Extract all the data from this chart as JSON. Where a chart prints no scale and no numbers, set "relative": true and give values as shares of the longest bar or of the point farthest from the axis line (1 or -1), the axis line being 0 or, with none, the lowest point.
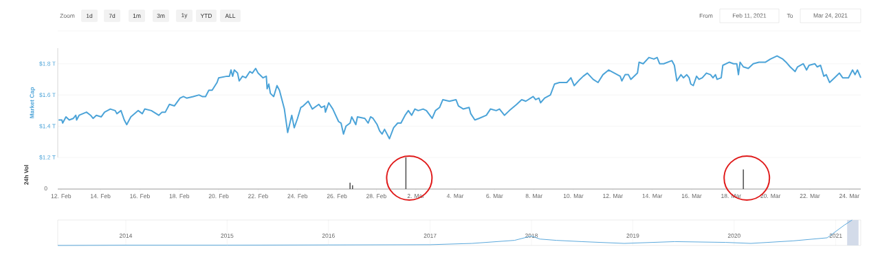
{
  "chart_data": [
    {
      "type": "line",
      "ylabel": "Market Cap",
      "color": "#4ba3d8",
      "grid": "y",
      "tick_labels": "y",
      "annotations": [
        "Zoom",
        "1d",
        "7d",
        "1m",
        "3m",
        "1y",
        "YTD",
        "ALL",
        "From",
        "Feb 11, 2021",
        "To",
        "Mar 24, 2021"
      ],
      "xlim": [
        "2021-02-11T20:00",
        "2021-03-24T14:00"
      ],
      "ylim": [
        1.2,
        1.9
      ],
      "yticks": [
        {
          "value": 1.2,
          "label": "$1.2 T"
        },
        {
          "value": 1.4,
          "label": "$1.4 T"
        },
        {
          "value": 1.6,
          "label": "$1.6 T"
        },
        {
          "value": 1.8,
          "label": "$1.8 T"
        }
      ],
      "x": [
        "2021-02-11T21:00",
        "2021-02-12T01:00",
        "2021-02-12T02:00",
        "2021-02-12T06:00",
        "2021-02-12T10:00",
        "2021-02-12T15:00",
        "2021-02-12T18:00",
        "2021-02-12T19:00",
        "2021-02-12T22:00",
        "2021-02-13T07:00",
        "2021-02-13T12:00",
        "2021-02-13T15:00",
        "2021-02-13T19:00",
        "2021-02-14T01:00",
        "2021-02-14T05:00",
        "2021-02-14T12:00",
        "2021-02-14T18:00",
        "2021-02-14T20:00",
        "2021-02-15T01:00",
        "2021-02-15T05:00",
        "2021-02-15T08:00",
        "2021-02-15T13:00",
        "2021-02-15T22:00",
        "2021-02-16T03:00",
        "2021-02-16T06:00",
        "2021-02-16T14:00",
        "2021-02-16T23:00",
        "2021-02-17T03:00",
        "2021-02-17T07:00",
        "2021-02-17T12:00",
        "2021-02-17T18:00",
        "2021-02-18T01:00",
        "2021-02-18T05:00",
        "2021-02-18T09:00",
        "2021-02-18T17:00",
        "2021-02-19T00:00",
        "2021-02-19T04:00",
        "2021-02-19T08:00",
        "2021-02-19T12:00",
        "2021-02-19T16:00",
        "2021-02-19T22:00",
        "2021-02-20T00:00",
        "2021-02-20T10:00",
        "2021-02-20T13:00",
        "2021-02-20T15:00",
        "2021-02-20T17:00",
        "2021-02-20T19:00",
        "2021-02-20T23:00",
        "2021-02-21T01:00",
        "2021-02-21T05:00",
        "2021-02-21T09:00",
        "2021-02-21T14:00",
        "2021-02-21T17:00",
        "2021-02-21T21:00",
        "2021-02-22T00:00",
        "2021-02-22T06:00",
        "2021-02-22T10:00",
        "2021-02-22T11:00",
        "2021-02-22T13:00",
        "2021-02-22T15:00",
        "2021-02-22T19:00",
        "2021-02-22T23:00",
        "2021-02-23T02:00",
        "2021-02-23T08:00",
        "2021-02-23T12:00",
        "2021-02-23T17:00",
        "2021-02-23T20:00",
        "2021-02-24T00:00",
        "2021-02-24T04:00",
        "2021-02-24T07:00",
        "2021-02-24T13:00",
        "2021-02-24T18:00",
        "2021-02-25T02:00",
        "2021-02-25T05:00",
        "2021-02-25T09:00",
        "2021-02-25T10:00",
        "2021-02-25T14:00",
        "2021-02-25T19:00",
        "2021-02-26T02:00",
        "2021-02-26T05:00",
        "2021-02-26T08:00",
        "2021-02-26T11:00",
        "2021-02-26T16:00",
        "2021-02-26T18:00",
        "2021-02-26T23:00",
        "2021-02-27T01:00",
        "2021-02-27T10:00",
        "2021-02-27T14:00",
        "2021-02-27T17:00",
        "2021-02-27T20:00",
        "2021-02-28T01:00",
        "2021-02-28T04:00",
        "2021-02-28T07:00",
        "2021-02-28T10:00",
        "2021-02-28T16:00",
        "2021-02-28T21:00",
        "2021-03-01T02:00",
        "2021-03-01T06:00",
        "2021-03-01T11:00",
        "2021-03-01T15:00",
        "2021-03-01T19:00",
        "2021-03-01T23:00",
        "2021-03-02T03:00",
        "2021-03-02T09:00",
        "2021-03-02T13:00",
        "2021-03-02T20:00",
        "2021-03-03T00:00",
        "2021-03-03T05:00",
        "2021-03-03T09:00",
        "2021-03-03T17:00",
        "2021-03-04T01:00",
        "2021-03-04T04:00",
        "2021-03-04T10:00",
        "2021-03-04T17:00",
        "2021-03-04T19:00",
        "2021-03-05T00:00",
        "2021-03-05T05:00",
        "2021-03-05T14:00",
        "2021-03-05T19:00",
        "2021-03-06T02:00",
        "2021-03-06T06:00",
        "2021-03-06T12:00",
        "2021-03-06T18:00",
        "2021-03-07T03:00",
        "2021-03-07T09:00",
        "2021-03-07T14:00",
        "2021-03-07T23:00",
        "2021-03-08T02:00",
        "2021-03-08T06:00",
        "2021-03-08T08:00",
        "2021-03-08T13:00",
        "2021-03-08T20:00",
        "2021-03-09T01:00",
        "2021-03-09T07:00",
        "2021-03-09T16:00",
        "2021-03-09T21:00",
        "2021-03-10T01:00",
        "2021-03-10T08:00",
        "2021-03-10T12:00",
        "2021-03-10T17:00",
        "2021-03-11T00:00",
        "2021-03-11T06:00",
        "2021-03-11T12:00",
        "2021-03-11T19:00",
        "2021-03-12T02:00",
        "2021-03-12T09:00",
        "2021-03-12T11:00",
        "2021-03-12T15:00",
        "2021-03-12T19:00",
        "2021-03-12T22:00",
        "2021-03-13T06:00",
        "2021-03-13T08:00",
        "2021-03-13T13:00",
        "2021-03-13T20:00",
        "2021-03-14T02:00",
        "2021-03-14T06:00",
        "2021-03-14T09:00",
        "2021-03-14T14:00",
        "2021-03-15T00:00",
        "2021-03-15T03:00",
        "2021-03-15T06:00",
        "2021-03-15T11:00",
        "2021-03-15T14:00",
        "2021-03-15T18:00",
        "2021-03-15T21:00",
        "2021-03-15T23:00",
        "2021-03-16T02:00",
        "2021-03-16T06:00",
        "2021-03-16T09:00",
        "2021-03-16T13:00",
        "2021-03-16T18:00",
        "2021-03-16T23:00",
        "2021-03-17T02:00",
        "2021-03-17T05:00",
        "2021-03-17T07:00",
        "2021-03-17T12:00",
        "2021-03-17T14:00",
        "2021-03-17T22:00",
        "2021-03-18T03:00",
        "2021-03-18T07:00",
        "2021-03-18T09:00",
        "2021-03-18T11:00",
        "2021-03-18T15:00",
        "2021-03-18T21:00",
        "2021-03-19T03:00",
        "2021-03-19T10:00",
        "2021-03-19T18:00",
        "2021-03-20T00:00",
        "2021-03-20T08:00",
        "2021-03-20T15:00",
        "2021-03-20T19:00",
        "2021-03-21T00:00",
        "2021-03-21T06:00",
        "2021-03-21T09:00",
        "2021-03-21T16:00",
        "2021-03-21T20:00",
        "2021-03-21T23:00",
        "2021-03-22T06:00",
        "2021-03-22T09:00",
        "2021-03-22T13:00",
        "2021-03-22T17:00",
        "2021-03-22T20:00",
        "2021-03-23T00:00",
        "2021-03-23T06:00",
        "2021-03-23T12:00",
        "2021-03-23T16:00",
        "2021-03-23T23:00",
        "2021-03-24T04:00",
        "2021-03-24T07:00",
        "2021-03-24T10:00",
        "2021-03-24T14:00"
      ],
      "values": [
        1.44,
        1.44,
        1.42,
        1.46,
        1.44,
        1.45,
        1.47,
        1.44,
        1.47,
        1.49,
        1.47,
        1.45,
        1.47,
        1.46,
        1.49,
        1.51,
        1.5,
        1.48,
        1.5,
        1.44,
        1.41,
        1.46,
        1.5,
        1.48,
        1.51,
        1.5,
        1.47,
        1.49,
        1.49,
        1.54,
        1.53,
        1.58,
        1.59,
        1.58,
        1.59,
        1.6,
        1.59,
        1.59,
        1.63,
        1.63,
        1.68,
        1.71,
        1.72,
        1.72,
        1.76,
        1.72,
        1.76,
        1.74,
        1.69,
        1.72,
        1.71,
        1.75,
        1.74,
        1.77,
        1.74,
        1.71,
        1.72,
        1.64,
        1.67,
        1.61,
        1.59,
        1.66,
        1.63,
        1.51,
        1.36,
        1.47,
        1.39,
        1.45,
        1.52,
        1.53,
        1.56,
        1.51,
        1.54,
        1.52,
        1.53,
        1.49,
        1.55,
        1.51,
        1.43,
        1.42,
        1.35,
        1.4,
        1.42,
        1.46,
        1.41,
        1.46,
        1.45,
        1.42,
        1.46,
        1.45,
        1.41,
        1.37,
        1.35,
        1.38,
        1.32,
        1.39,
        1.42,
        1.42,
        1.47,
        1.5,
        1.47,
        1.51,
        1.5,
        1.51,
        1.5,
        1.45,
        1.5,
        1.52,
        1.57,
        1.56,
        1.57,
        1.53,
        1.51,
        1.52,
        1.48,
        1.44,
        1.45,
        1.47,
        1.51,
        1.5,
        1.51,
        1.47,
        1.5,
        1.54,
        1.57,
        1.56,
        1.59,
        1.57,
        1.58,
        1.55,
        1.58,
        1.6,
        1.67,
        1.68,
        1.68,
        1.71,
        1.66,
        1.7,
        1.72,
        1.74,
        1.7,
        1.68,
        1.73,
        1.76,
        1.74,
        1.72,
        1.69,
        1.73,
        1.73,
        1.7,
        1.74,
        1.81,
        1.8,
        1.84,
        1.83,
        1.84,
        1.8,
        1.8,
        1.82,
        1.79,
        1.69,
        1.73,
        1.71,
        1.73,
        1.71,
        1.67,
        1.66,
        1.72,
        1.7,
        1.71,
        1.74,
        1.73,
        1.71,
        1.73,
        1.7,
        1.71,
        1.79,
        1.81,
        1.8,
        1.8,
        1.73,
        1.81,
        1.78,
        1.77,
        1.8,
        1.81,
        1.81,
        1.83,
        1.85,
        1.83,
        1.81,
        1.78,
        1.75,
        1.78,
        1.8,
        1.76,
        1.79,
        1.8,
        1.78,
        1.79,
        1.72,
        1.73,
        1.68,
        1.71,
        1.74,
        1.71,
        1.71,
        1.76,
        1.73,
        1.76,
        1.71
      ]
    },
    {
      "type": "bar",
      "relative": true,
      "ylabel": "24h Vol",
      "color": "#555555",
      "annotations": [
        "0"
      ],
      "xlim": [
        "2021-02-11T20:00",
        "2021-03-24T14:00"
      ],
      "xticks": [
        {
          "value": "2021-02-12",
          "label": "12. Feb"
        },
        {
          "value": "2021-02-14",
          "label": "14. Feb"
        },
        {
          "value": "2021-02-16",
          "label": "16. Feb"
        },
        {
          "value": "2021-02-18",
          "label": "18. Feb"
        },
        {
          "value": "2021-02-20",
          "label": "20. Feb"
        },
        {
          "value": "2021-02-22",
          "label": "22. Feb"
        },
        {
          "value": "2021-02-24",
          "label": "24. Feb"
        },
        {
          "value": "2021-02-26",
          "label": "26. Feb"
        },
        {
          "value": "2021-02-28",
          "label": "28. Feb"
        },
        {
          "value": "2021-03-02",
          "label": "2. Mar"
        },
        {
          "value": "2021-03-04",
          "label": "4. Mar"
        },
        {
          "value": "2021-03-06",
          "label": "6. Mar"
        },
        {
          "value": "2021-03-08",
          "label": "8. Mar"
        },
        {
          "value": "2021-03-10",
          "label": "10. Mar"
        },
        {
          "value": "2021-03-12",
          "label": "12. Mar"
        },
        {
          "value": "2021-03-14",
          "label": "14. Mar"
        },
        {
          "value": "2021-03-16",
          "label": "16. Mar"
        },
        {
          "value": "2021-03-18",
          "label": "18. Mar"
        },
        {
          "value": "2021-03-20",
          "label": "20. Mar"
        },
        {
          "value": "2021-03-22",
          "label": "22. Mar"
        },
        {
          "value": "2021-03-24",
          "label": "24. Mar"
        }
      ],
      "x": [
        "2021-02-26T16:00",
        "2021-02-26T19:00",
        "2021-03-01T12:00",
        "2021-03-18T15:00"
      ],
      "values": [
        0.2,
        0.12,
        1,
        0.62
      ]
    },
    {
      "type": "line",
      "relative": true,
      "color": "#5aa8dc",
      "grid": "x",
      "xlim": [
        "2013-05",
        "2021-04"
      ],
      "xticks": [
        {
          "value": "2014",
          "label": "2014"
        },
        {
          "value": "2015",
          "label": "2015"
        },
        {
          "value": "2016",
          "label": "2016"
        },
        {
          "value": "2017",
          "label": "2017"
        },
        {
          "value": "2018",
          "label": "2018"
        },
        {
          "value": "2019",
          "label": "2019"
        },
        {
          "value": "2020",
          "label": "2020"
        },
        {
          "value": "2021",
          "label": "2021"
        }
      ],
      "bands": [
        {
          "axis": "x",
          "from": "2021-02-11",
          "to": "2021-03-24",
          "color": "#d3dbe9"
        }
      ],
      "x": [
        "2013-05",
        "2014-01",
        "2015-01",
        "2016-01",
        "2017-01",
        "2017-06",
        "2017-11",
        "2018-01",
        "2018-02",
        "2018-04",
        "2018-07",
        "2018-12",
        "2019-06",
        "2019-12",
        "2020-03",
        "2020-08",
        "2020-12",
        "2021-01",
        "2021-02",
        "2021-03"
      ],
      "values": [
        0,
        0.01,
        0.01,
        0.02,
        0.03,
        0.08,
        0.2,
        0.37,
        0.25,
        0.2,
        0.15,
        0.08,
        0.15,
        0.12,
        0.08,
        0.18,
        0.3,
        0.55,
        0.8,
        1
      ]
    }
  ]
}
